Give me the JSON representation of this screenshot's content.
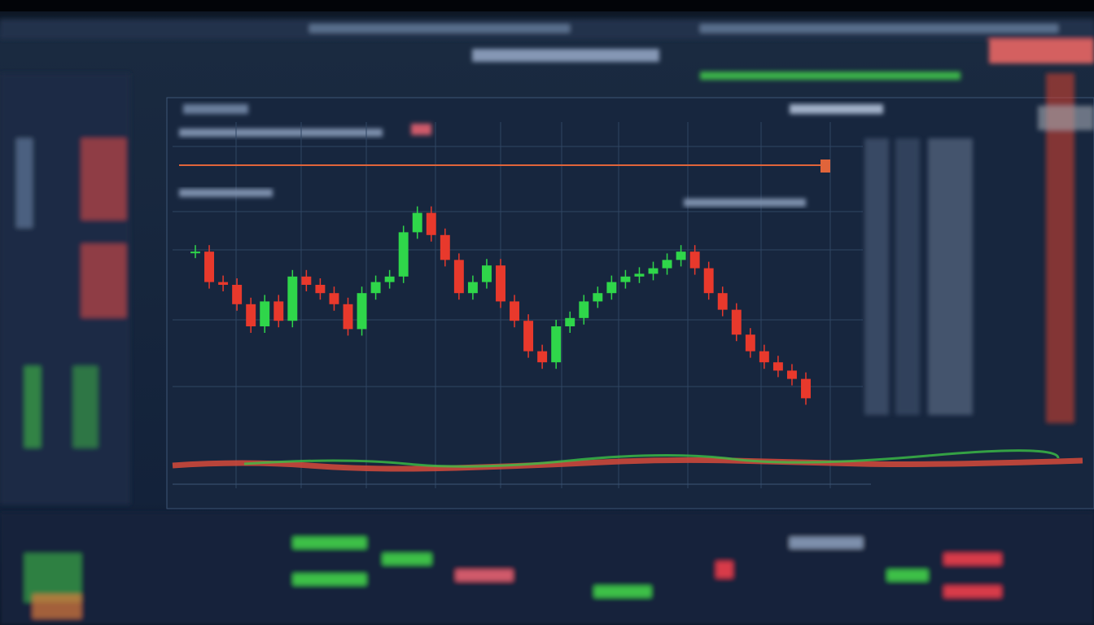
{
  "chart_data": {
    "type": "candlestick",
    "values": [
      62,
      51,
      50,
      43,
      35,
      44,
      37,
      53,
      50,
      47,
      43,
      34,
      47,
      51,
      53,
      69,
      76,
      68,
      59,
      47,
      51,
      57,
      44,
      37,
      26,
      22,
      35,
      38,
      44,
      47,
      51,
      53,
      54,
      56,
      59,
      62,
      56,
      47,
      41,
      32,
      26,
      22,
      19,
      16,
      9
    ],
    "ylim": [
      0,
      100
    ],
    "up_color": "#2fd64a",
    "down_color": "#e8392c"
  }
}
